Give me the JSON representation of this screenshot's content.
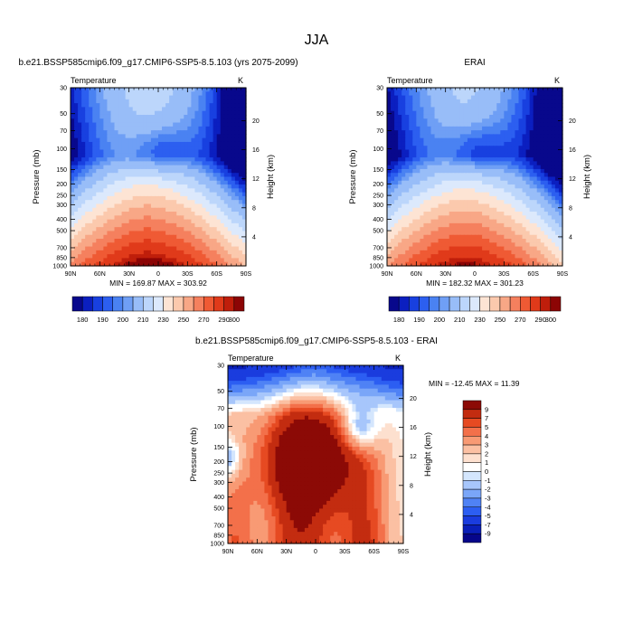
{
  "figure": {
    "title": "JJA"
  },
  "colors": {
    "levels": [
      "#08088c",
      "#0b1fc0",
      "#1840e0",
      "#2c5ff0",
      "#4a82f2",
      "#6f9ff5",
      "#98bdf8",
      "#bcd6fb",
      "#dce9fc",
      "#fde4d4",
      "#fbc9ad",
      "#f8a786",
      "#f5805e",
      "#ef5a34",
      "#e03a1a",
      "#bf1e0b",
      "#8c0505"
    ],
    "diff_levels": [
      "#06068a",
      "#0a1fb8",
      "#1a3cde",
      "#2c5ef2",
      "#4f82f5",
      "#7aa6f8",
      "#a7c6fb",
      "#d4e6fd",
      "#ffffff",
      "#fde0cf",
      "#fbc0a3",
      "#f89a74",
      "#f3704a",
      "#e64a22",
      "#c32c10",
      "#8c0a06"
    ]
  },
  "chart_data": [
    {
      "type": "heatmap",
      "panel": "model",
      "title": "b.e21.BSSP585cmip6.f09_g17.CMIP6-SSP5-8.5.103 (yrs 2075-2099)",
      "subtitle_left": "Temperature",
      "subtitle_right": "K",
      "ylabel": "Pressure (mb)",
      "ylabel_right": "Height (km)",
      "x_ticklabels": [
        "90N",
        "60N",
        "30N",
        "0",
        "30S",
        "60S",
        "90S"
      ],
      "x_tickvalues": [
        90,
        60,
        30,
        0,
        -30,
        -60,
        -90
      ],
      "y_ticklabels": [
        "30",
        "50",
        "70",
        "100",
        "150",
        "200",
        "250",
        "300",
        "400",
        "500",
        "700",
        "850",
        "1000"
      ],
      "y_tickvalues": [
        30,
        50,
        70,
        100,
        150,
        200,
        250,
        300,
        400,
        500,
        700,
        850,
        1000
      ],
      "y_scale": "log",
      "height_ticklabels": [
        "4",
        "8",
        "12",
        "16",
        "20"
      ],
      "height_tickvalues": [
        4,
        8,
        12,
        16,
        20
      ],
      "xlim": [
        90,
        -90
      ],
      "ylim": [
        1000,
        30
      ],
      "min_max_text": "MIN = 169.87   MAX = 303.92",
      "colorbar_labels": [
        "180",
        "190",
        "200",
        "210",
        "230",
        "250",
        "270",
        "290",
        "300"
      ],
      "colorbar_levels": [
        175,
        180,
        185,
        190,
        195,
        200,
        210,
        220,
        230,
        240,
        250,
        260,
        270,
        280,
        290,
        295,
        300
      ],
      "fields": {
        "surface_max": 302,
        "pole_min": 170,
        "tropo_min": 192
      }
    },
    {
      "type": "heatmap",
      "panel": "reanalysis",
      "title": "ERAI",
      "subtitle_left": "Temperature",
      "subtitle_right": "K",
      "ylabel": "Pressure (mb)",
      "ylabel_right": "Height (km)",
      "x_ticklabels": [
        "90N",
        "60N",
        "30N",
        "0",
        "30S",
        "60S",
        "90S"
      ],
      "x_tickvalues": [
        90,
        60,
        30,
        0,
        -30,
        -60,
        -90
      ],
      "y_ticklabels": [
        "30",
        "50",
        "70",
        "100",
        "150",
        "200",
        "250",
        "300",
        "400",
        "500",
        "700",
        "850",
        "1000"
      ],
      "y_tickvalues": [
        30,
        50,
        70,
        100,
        150,
        200,
        250,
        300,
        400,
        500,
        700,
        850,
        1000
      ],
      "y_scale": "log",
      "height_ticklabels": [
        "4",
        "8",
        "12",
        "16",
        "20"
      ],
      "height_tickvalues": [
        4,
        8,
        12,
        16,
        20
      ],
      "xlim": [
        90,
        -90
      ],
      "ylim": [
        1000,
        30
      ],
      "min_max_text": "MIN = 182.32   MAX = 301.23",
      "colorbar_labels": [
        "180",
        "190",
        "200",
        "210",
        "230",
        "250",
        "270",
        "290",
        "300"
      ],
      "colorbar_levels": [
        175,
        180,
        185,
        190,
        195,
        200,
        210,
        220,
        230,
        240,
        250,
        260,
        270,
        280,
        290,
        295,
        300
      ],
      "fields": {
        "surface_max": 298,
        "pole_min": 182,
        "tropo_min": 188
      }
    },
    {
      "type": "heatmap",
      "panel": "difference",
      "title": "b.e21.BSSP585cmip6.f09_g17.CMIP6-SSP5-8.5.103 - ERAI",
      "subtitle_left": "Temperature",
      "subtitle_right": "K",
      "ylabel": "Pressure (mb)",
      "ylabel_right": "Height (km)",
      "x_ticklabels": [
        "90N",
        "60N",
        "30N",
        "0",
        "30S",
        "60S",
        "90S"
      ],
      "x_tickvalues": [
        90,
        60,
        30,
        0,
        -30,
        -60,
        -90
      ],
      "y_ticklabels": [
        "30",
        "50",
        "70",
        "100",
        "150",
        "200",
        "250",
        "300",
        "400",
        "500",
        "700",
        "850",
        "1000"
      ],
      "y_tickvalues": [
        30,
        50,
        70,
        100,
        150,
        200,
        250,
        300,
        400,
        500,
        700,
        850,
        1000
      ],
      "y_scale": "log",
      "height_ticklabels": [
        "4",
        "8",
        "12",
        "16",
        "20"
      ],
      "height_tickvalues": [
        4,
        8,
        12,
        16,
        20
      ],
      "xlim": [
        90,
        -90
      ],
      "ylim": [
        1000,
        30
      ],
      "min_max_text": "MIN = -12.45   MAX =  11.39",
      "colorbar_labels": [
        "9",
        "7",
        "5",
        "4",
        "3",
        "2",
        "1",
        "0",
        "-1",
        "-2",
        "-3",
        "-4",
        "-5",
        "-7",
        "-9"
      ],
      "colorbar_levels": [
        9,
        7,
        5,
        4,
        3,
        2,
        1,
        0,
        -1,
        -2,
        -3,
        -4,
        -5,
        -7,
        -9
      ],
      "fields": {
        "core_max": 10,
        "strat_min": -8
      }
    }
  ]
}
